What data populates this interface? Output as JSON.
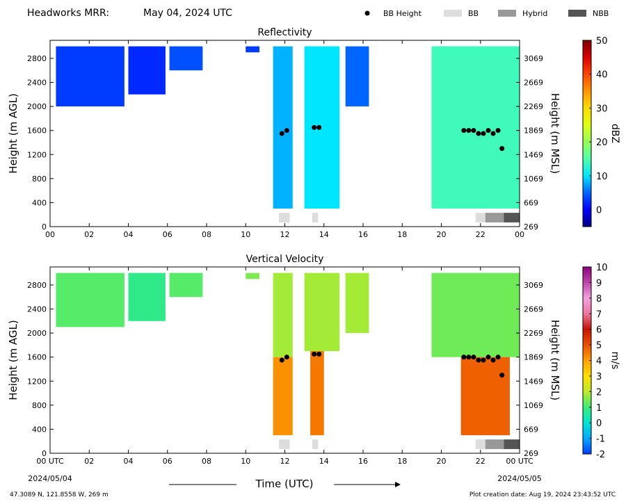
{
  "figure": {
    "station": "Headworks MRR:",
    "date": "May 04, 2024 UTC",
    "time_axis_label": "Time (UTC)",
    "start_date": "2024/05/04",
    "end_date": "2024/05/05",
    "location": "47.3089 N, 121.8558 W, 269 m",
    "creation": "Plot creation date: Aug 19, 2024 23:43:52 UTC"
  },
  "legend": [
    {
      "label": "BB Height",
      "color": "#000000",
      "shape": "dot"
    },
    {
      "label": "BB",
      "color": "#dddddd",
      "shape": "rect"
    },
    {
      "label": "Hybrid",
      "color": "#999999",
      "shape": "rect"
    },
    {
      "label": "NBB",
      "color": "#555555",
      "shape": "rect"
    }
  ],
  "chart_data": [
    {
      "type": "heatmap",
      "title": "Reflectivity",
      "ylabel": "Height (m AGL)",
      "ylabel_right": "Height (m MSL)",
      "x_ticks": [
        "00",
        "02",
        "04",
        "06",
        "08",
        "10",
        "12",
        "14",
        "16",
        "18",
        "20",
        "22",
        "00"
      ],
      "x_tick_values": [
        0,
        2,
        4,
        6,
        8,
        10,
        12,
        14,
        16,
        18,
        20,
        22,
        24
      ],
      "xlim": [
        0,
        24
      ],
      "y_ticks": [
        "0",
        "400",
        "800",
        "1200",
        "1600",
        "2000",
        "2400",
        "2800"
      ],
      "y_tick_values": [
        0,
        400,
        800,
        1200,
        1600,
        2000,
        2400,
        2800
      ],
      "y_ticks_right": [
        "269",
        "669",
        "1069",
        "1469",
        "1869",
        "2269",
        "2669",
        "3069"
      ],
      "ylim": [
        0,
        3100
      ],
      "colorbar": {
        "label": "dBZ",
        "ticks": [
          "0",
          "10",
          "20",
          "30",
          "40",
          "50"
        ],
        "tick_values": [
          0,
          10,
          20,
          30,
          40,
          50
        ],
        "range": [
          -5,
          50
        ]
      },
      "bb_height": {
        "x": [
          11.85,
          12.1,
          13.5,
          13.75,
          21.15,
          21.4,
          21.65,
          21.9,
          22.15,
          22.4,
          22.65,
          22.9,
          23.1
        ],
        "y": [
          1550,
          1600,
          1650,
          1650,
          1600,
          1600,
          1600,
          1550,
          1550,
          1600,
          1550,
          1600,
          1300
        ]
      },
      "bb_type": [
        {
          "start": 11.7,
          "end": 12.25,
          "type": "BB"
        },
        {
          "start": 13.4,
          "end": 13.7,
          "type": "BB"
        },
        {
          "start": 21.75,
          "end": 22.25,
          "type": "BB"
        },
        {
          "start": 22.25,
          "end": 23.2,
          "type": "Hybrid"
        },
        {
          "start": 23.2,
          "end": 24.0,
          "type": "NBB"
        }
      ],
      "echo_regions": [
        {
          "start": 0.3,
          "end": 3.8,
          "bottom": 2000,
          "top": 3000,
          "value": 3
        },
        {
          "start": 4.0,
          "end": 5.9,
          "bottom": 2200,
          "top": 3000,
          "value": 2
        },
        {
          "start": 6.1,
          "end": 7.8,
          "bottom": 2600,
          "top": 3000,
          "value": 4
        },
        {
          "start": 10.0,
          "end": 10.7,
          "bottom": 2900,
          "top": 3000,
          "value": 3
        },
        {
          "start": 11.4,
          "end": 12.4,
          "bottom": 300,
          "top": 3000,
          "value": 8
        },
        {
          "start": 13.0,
          "end": 14.8,
          "bottom": 300,
          "top": 3000,
          "value": 10
        },
        {
          "start": 15.1,
          "end": 16.3,
          "bottom": 2000,
          "top": 3000,
          "value": 5
        },
        {
          "start": 19.5,
          "end": 24.0,
          "bottom": 300,
          "top": 3000,
          "value": 14
        }
      ]
    },
    {
      "type": "heatmap",
      "title": "Vertical Velocity",
      "ylabel": "Height (m AGL)",
      "ylabel_right": "Height (m MSL)",
      "x_ticks": [
        "00 UTC",
        "02",
        "04",
        "06",
        "08",
        "10",
        "12",
        "14",
        "16",
        "18",
        "20",
        "22",
        "00 UTC"
      ],
      "x_tick_values": [
        0,
        2,
        4,
        6,
        8,
        10,
        12,
        14,
        16,
        18,
        20,
        22,
        24
      ],
      "xlim": [
        0,
        24
      ],
      "y_ticks": [
        "0",
        "400",
        "800",
        "1200",
        "1600",
        "2000",
        "2400",
        "2800"
      ],
      "y_tick_values": [
        0,
        400,
        800,
        1200,
        1600,
        2000,
        2400,
        2800
      ],
      "y_ticks_right": [
        "269",
        "669",
        "1069",
        "1469",
        "1869",
        "2269",
        "2669",
        "3069"
      ],
      "ylim": [
        0,
        3100
      ],
      "colorbar": {
        "label": "m/s",
        "ticks": [
          "-2",
          "-1",
          "0",
          "1",
          "2",
          "3",
          "4",
          "5",
          "6",
          "7",
          "8",
          "9",
          "10"
        ],
        "tick_values": [
          -2,
          -1,
          0,
          1,
          2,
          3,
          4,
          5,
          6,
          7,
          8,
          9,
          10
        ],
        "range": [
          -2,
          10
        ]
      },
      "bb_height": {
        "x": [
          11.85,
          12.1,
          13.5,
          13.75,
          21.15,
          21.4,
          21.65,
          21.9,
          22.15,
          22.4,
          22.65,
          22.9,
          23.1
        ],
        "y": [
          1550,
          1600,
          1650,
          1650,
          1600,
          1600,
          1600,
          1550,
          1550,
          1600,
          1550,
          1600,
          1300
        ]
      },
      "bb_type": [
        {
          "start": 11.7,
          "end": 12.25,
          "type": "BB"
        },
        {
          "start": 13.4,
          "end": 13.7,
          "type": "BB"
        },
        {
          "start": 21.75,
          "end": 22.25,
          "type": "BB"
        },
        {
          "start": 22.25,
          "end": 23.2,
          "type": "Hybrid"
        },
        {
          "start": 23.2,
          "end": 24.0,
          "type": "NBB"
        }
      ],
      "echo_regions": [
        {
          "start": 0.3,
          "end": 3.8,
          "bottom": 2100,
          "top": 3000,
          "value": 1.2
        },
        {
          "start": 4.0,
          "end": 5.9,
          "bottom": 2200,
          "top": 3000,
          "value": 0.8
        },
        {
          "start": 6.1,
          "end": 7.8,
          "bottom": 2600,
          "top": 3000,
          "value": 1.2
        },
        {
          "start": 10.0,
          "end": 10.7,
          "bottom": 2900,
          "top": 3000,
          "value": 1.5
        },
        {
          "start": 11.4,
          "end": 12.4,
          "bottom": 1600,
          "top": 3000,
          "value": 1.8
        },
        {
          "start": 11.4,
          "end": 12.4,
          "bottom": 300,
          "top": 1600,
          "value": 4.2
        },
        {
          "start": 13.0,
          "end": 14.8,
          "bottom": 1700,
          "top": 3000,
          "value": 1.8
        },
        {
          "start": 13.3,
          "end": 14.0,
          "bottom": 300,
          "top": 1700,
          "value": 4.5
        },
        {
          "start": 15.1,
          "end": 16.3,
          "bottom": 2000,
          "top": 3000,
          "value": 1.8
        },
        {
          "start": 19.5,
          "end": 24.0,
          "bottom": 1600,
          "top": 3000,
          "value": 1.4
        },
        {
          "start": 21.0,
          "end": 23.5,
          "bottom": 300,
          "top": 1600,
          "value": 4.8
        }
      ]
    }
  ]
}
